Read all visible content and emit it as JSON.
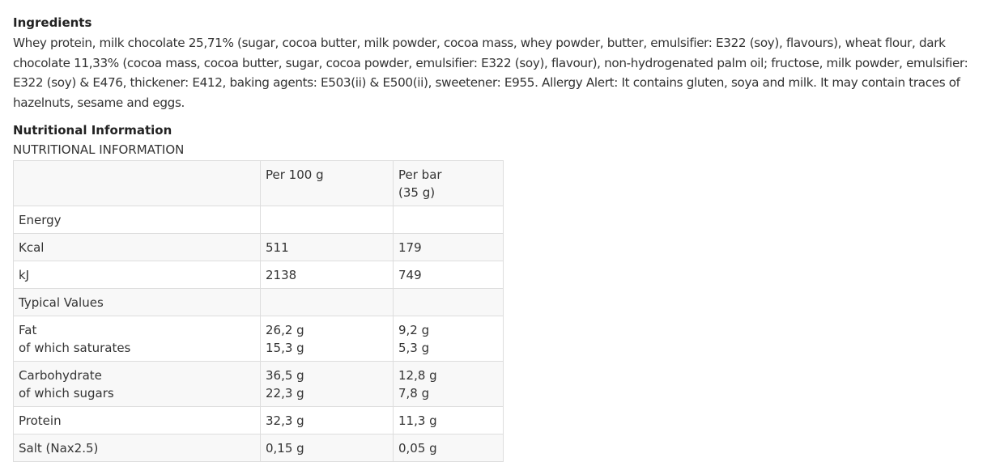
{
  "ingredients": {
    "title": "Ingredients",
    "text": "Whey protein, milk chocolate 25,71% (sugar, cocoa butter, milk powder, cocoa mass, whey powder, butter, emulsifier: E322 (soy), flavours), wheat flour, dark chocolate 11,33% (cocoa mass, cocoa butter, sugar, cocoa powder, emulsifier: E322 (soy), flavour), non-hydrogenated palm oil; fructose, milk powder, emulsifier: E322 (soy) & E476, thickener: E412, baking agents: E503(ii) & E500(ii), sweetener: E955. Allergy Alert: It contains gluten, soya and milk. It may contain traces of hazelnuts, sesame and eggs."
  },
  "nutrition": {
    "title": "Nutritional Information",
    "subtitle": "NUTRITIONAL INFORMATION",
    "table": {
      "rows": [
        [
          [],
          [
            "Per 100 g"
          ],
          [
            "Per bar",
            "(35 g)"
          ]
        ],
        [
          [
            "Energy"
          ],
          [],
          []
        ],
        [
          [
            "Kcal"
          ],
          [
            "511"
          ],
          [
            "179"
          ]
        ],
        [
          [
            "kJ"
          ],
          [
            "2138"
          ],
          [
            "749"
          ]
        ],
        [
          [
            "Typical Values"
          ],
          [],
          []
        ],
        [
          [
            "Fat",
            "of which saturates"
          ],
          [
            "26,2 g",
            "15,3 g"
          ],
          [
            "9,2 g",
            "5,3 g"
          ]
        ],
        [
          [
            "Carbohydrate",
            "of which sugars"
          ],
          [
            "36,5 g",
            "22,3 g"
          ],
          [
            "12,8 g",
            "7,8 g"
          ]
        ],
        [
          [
            "Protein"
          ],
          [
            "32,3 g"
          ],
          [
            "11,3 g"
          ]
        ],
        [
          [
            "Salt (Nax2.5)"
          ],
          [
            "0,15 g"
          ],
          [
            "0,05 g"
          ]
        ]
      ]
    }
  }
}
